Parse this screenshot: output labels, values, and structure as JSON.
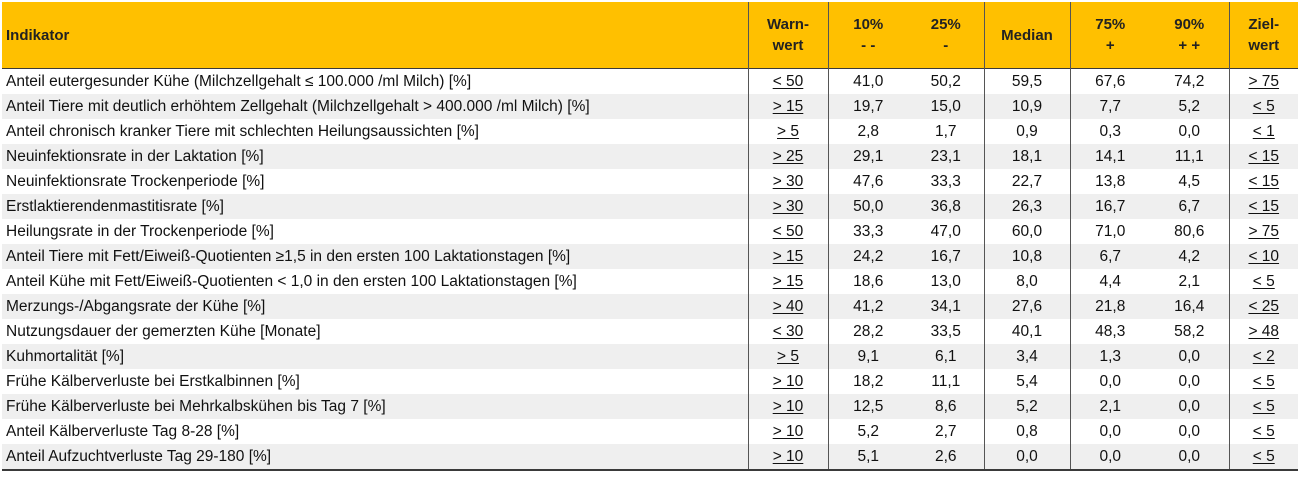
{
  "table": {
    "headers": {
      "indikator": "Indikator",
      "warnwert": [
        "Warn-",
        "wert"
      ],
      "p10": [
        "10%",
        "- -"
      ],
      "p25": [
        "25%",
        "-"
      ],
      "median": "Median",
      "p75": [
        "75%",
        "+"
      ],
      "p90": [
        "90%",
        "+ +"
      ],
      "zielwert": [
        "Ziel-",
        "wert"
      ]
    },
    "rows": [
      {
        "indikator": "Anteil eutergesunder Kühe (Milchzellgehalt ≤ 100.000 /ml Milch) [%]",
        "warn": "< 50",
        "p10": "41,0",
        "p25": "50,2",
        "median": "59,5",
        "p75": "67,6",
        "p90": "74,2",
        "ziel": "> 75"
      },
      {
        "indikator": "Anteil Tiere mit deutlich erhöhtem Zellgehalt (Milchzellgehalt > 400.000 /ml Milch) [%]",
        "warn": "> 15",
        "p10": "19,7",
        "p25": "15,0",
        "median": "10,9",
        "p75": "7,7",
        "p90": "5,2",
        "ziel": "< 5"
      },
      {
        "indikator": "Anteil chronisch kranker Tiere mit schlechten Heilungsaussichten [%]",
        "warn": "> 5",
        "p10": "2,8",
        "p25": "1,7",
        "median": "0,9",
        "p75": "0,3",
        "p90": "0,0",
        "ziel": "< 1"
      },
      {
        "indikator": "Neuinfektionsrate in der Laktation [%]",
        "warn": "> 25",
        "p10": "29,1",
        "p25": "23,1",
        "median": "18,1",
        "p75": "14,1",
        "p90": "11,1",
        "ziel": "< 15"
      },
      {
        "indikator": "Neuinfektionsrate Trockenperiode [%]",
        "warn": "> 30",
        "p10": "47,6",
        "p25": "33,3",
        "median": "22,7",
        "p75": "13,8",
        "p90": "4,5",
        "ziel": "< 15"
      },
      {
        "indikator": "Erstlaktierendenmastitisrate [%]",
        "warn": "> 30",
        "p10": "50,0",
        "p25": "36,8",
        "median": "26,3",
        "p75": "16,7",
        "p90": "6,7",
        "ziel": "< 15"
      },
      {
        "indikator": "Heilungsrate in der Trockenperiode [%]",
        "warn": "< 50",
        "p10": "33,3",
        "p25": "47,0",
        "median": "60,0",
        "p75": "71,0",
        "p90": "80,6",
        "ziel": "> 75"
      },
      {
        "indikator": "Anteil Tiere mit Fett/Eiweiß-Quotienten ≥1,5 in den ersten 100 Laktationstagen [%]",
        "warn": "> 15",
        "p10": "24,2",
        "p25": "16,7",
        "median": "10,8",
        "p75": "6,7",
        "p90": "4,2",
        "ziel": "< 10"
      },
      {
        "indikator": "Anteil Kühe mit Fett/Eiweiß-Quotienten < 1,0 in den ersten 100 Laktationstagen [%]",
        "warn": "> 15",
        "p10": "18,6",
        "p25": "13,0",
        "median": "8,0",
        "p75": "4,4",
        "p90": "2,1",
        "ziel": "< 5"
      },
      {
        "indikator": "Merzungs-/Abgangsrate der Kühe [%]",
        "warn": "> 40",
        "p10": "41,2",
        "p25": "34,1",
        "median": "27,6",
        "p75": "21,8",
        "p90": "16,4",
        "ziel": "< 25"
      },
      {
        "indikator": "Nutzungsdauer der gemerzten Kühe [Monate]",
        "warn": "< 30",
        "p10": "28,2",
        "p25": "33,5",
        "median": "40,1",
        "p75": "48,3",
        "p90": "58,2",
        "ziel": "> 48"
      },
      {
        "indikator": "Kuhmortalität [%]",
        "warn": "> 5",
        "p10": "9,1",
        "p25": "6,1",
        "median": "3,4",
        "p75": "1,3",
        "p90": "0,0",
        "ziel": "< 2"
      },
      {
        "indikator": "Frühe Kälberverluste bei Erstkalbinnen [%]",
        "warn": "> 10",
        "p10": "18,2",
        "p25": "11,1",
        "median": "5,4",
        "p75": "0,0",
        "p90": "0,0",
        "ziel": "< 5"
      },
      {
        "indikator": "Frühe Kälberverluste bei Mehrkalbskühen bis Tag 7 [%]",
        "warn": "> 10",
        "p10": "12,5",
        "p25": "8,6",
        "median": "5,2",
        "p75": "2,1",
        "p90": "0,0",
        "ziel": "< 5"
      },
      {
        "indikator": "Anteil Kälberverluste Tag 8-28 [%]",
        "warn": "> 10",
        "p10": "5,2",
        "p25": "2,7",
        "median": "0,8",
        "p75": "0,0",
        "p90": "0,0",
        "ziel": "< 5"
      },
      {
        "indikator": "Anteil Aufzuchtverluste Tag 29-180 [%]",
        "warn": "> 10",
        "p10": "5,1",
        "p25": "2,6",
        "median": "0,0",
        "p75": "0,0",
        "p90": "0,0",
        "ziel": "< 5"
      }
    ],
    "colors": {
      "header_bg": "#FFC000",
      "stripe_bg": "#EFEFEF",
      "rule": "#3a3a3a"
    }
  }
}
